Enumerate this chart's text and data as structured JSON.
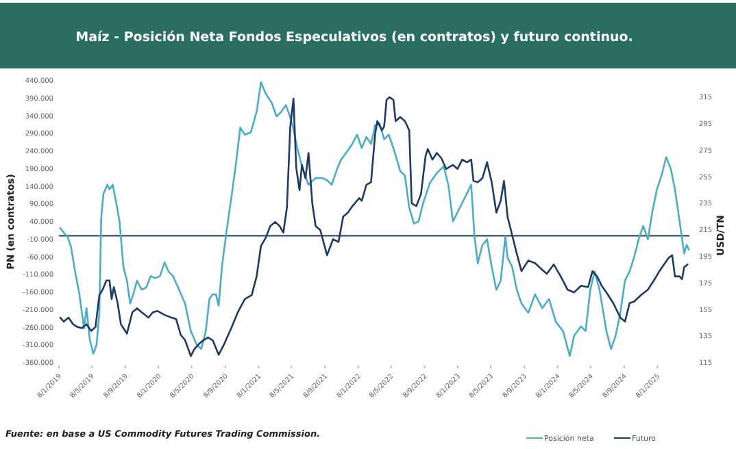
{
  "chart_data": {
    "type": "line",
    "title": "Maíz - Posición Neta Fondos Especulativos (en contratos) y futuro continuo.",
    "ylabel": "PN (en contratos)",
    "y2label": "USD/TN",
    "annotations": [
      "Fuente: en base a US Commodity  Futures Trading Commission."
    ],
    "legend": "bottom right",
    "xlim": [
      "2019-01-08",
      "2025-05-05"
    ],
    "xticks": [
      {
        "value": "2019-01-08",
        "label": "8/1/2019"
      },
      {
        "value": "2019-05-08",
        "label": "8/5/2019"
      },
      {
        "value": "2019-09-08",
        "label": "8/9/2019"
      },
      {
        "value": "2020-01-08",
        "label": "8/1/2020"
      },
      {
        "value": "2020-05-08",
        "label": "8/5/2020"
      },
      {
        "value": "2020-09-08",
        "label": "8/9/2020"
      },
      {
        "value": "2021-01-08",
        "label": "8/1/2021"
      },
      {
        "value": "2021-05-08",
        "label": "8/5/2021"
      },
      {
        "value": "2021-09-08",
        "label": "8/9/2021"
      },
      {
        "value": "2022-01-08",
        "label": "8/1/2022"
      },
      {
        "value": "2022-05-08",
        "label": "8/5/2022"
      },
      {
        "value": "2022-09-08",
        "label": "8/9/2022"
      },
      {
        "value": "2023-01-08",
        "label": "8/1/2023"
      },
      {
        "value": "2023-05-08",
        "label": "8/5/2023"
      },
      {
        "value": "2023-09-08",
        "label": "8/9/2023"
      },
      {
        "value": "2024-01-08",
        "label": "8/1/2024"
      },
      {
        "value": "2024-05-08",
        "label": "8/5/2024"
      },
      {
        "value": "2024-09-08",
        "label": "8/9/2024"
      },
      {
        "value": "2025-01-08",
        "label": "8/1/2025"
      }
    ],
    "ylim": [
      -360000,
      440000
    ],
    "yticks": [
      {
        "value": 440000,
        "label": "440.000"
      },
      {
        "value": 390000,
        "label": "390.000"
      },
      {
        "value": 340000,
        "label": "340.000"
      },
      {
        "value": 290000,
        "label": "290.000"
      },
      {
        "value": 240000,
        "label": "240.000"
      },
      {
        "value": 190000,
        "label": "190.000"
      },
      {
        "value": 140000,
        "label": "140.000"
      },
      {
        "value": 90000,
        "label": "90.000"
      },
      {
        "value": 40000,
        "label": "40.000"
      },
      {
        "value": -10000,
        "label": "-10.000"
      },
      {
        "value": -60000,
        "label": "-60.000"
      },
      {
        "value": -110000,
        "label": "-110.000"
      },
      {
        "value": -160000,
        "label": "-160.000"
      },
      {
        "value": -210000,
        "label": "-210.000"
      },
      {
        "value": -260000,
        "label": "-260.000"
      },
      {
        "value": -310000,
        "label": "-310.000"
      },
      {
        "value": -360000,
        "label": "-360.000"
      }
    ],
    "y2lim": [
      115,
      315
    ],
    "y2ticks": [
      115,
      135,
      155,
      175,
      195,
      215,
      235,
      255,
      275,
      295,
      315
    ],
    "ref_lines": [
      {
        "axis": "y",
        "value": 0,
        "color": "#1f3864"
      }
    ],
    "series": [
      {
        "name": "Posición neta",
        "color": "#4bacc6",
        "x": [
          "2019-01-13",
          "2019-01-26",
          "2019-02-09",
          "2019-02-21",
          "2019-03-08",
          "2019-03-24",
          "2019-04-02",
          "2019-04-10",
          "2019-04-19",
          "2019-05-01",
          "2019-05-14",
          "2019-05-26",
          "2019-06-05",
          "2019-06-12",
          "2019-06-20",
          "2019-07-04",
          "2019-07-12",
          "2019-07-24",
          "2019-08-06",
          "2019-08-18",
          "2019-09-01",
          "2019-09-14",
          "2019-09-26",
          "2019-10-07",
          "2019-10-21",
          "2019-11-07",
          "2019-11-24",
          "2019-12-10",
          "2019-12-27",
          "2020-01-13",
          "2020-01-30",
          "2020-02-13",
          "2020-03-01",
          "2020-03-23",
          "2020-04-14",
          "2020-05-05",
          "2020-05-26",
          "2020-06-12",
          "2020-06-29",
          "2020-07-12",
          "2020-07-24",
          "2020-08-05",
          "2020-08-15",
          "2020-08-27",
          "2020-09-13",
          "2020-09-30",
          "2020-10-16",
          "2020-11-02",
          "2020-11-19",
          "2020-12-11",
          "2021-01-01",
          "2021-01-17",
          "2021-02-03",
          "2021-02-25",
          "2021-03-15",
          "2021-04-01",
          "2021-04-18",
          "2021-04-30",
          "2021-05-13",
          "2021-05-30",
          "2021-06-16",
          "2021-07-10",
          "2021-08-05",
          "2021-08-30",
          "2021-09-16",
          "2021-10-03",
          "2021-10-20",
          "2021-11-06",
          "2021-12-01",
          "2021-12-18",
          "2022-01-04",
          "2022-01-21",
          "2022-02-07",
          "2022-02-24",
          "2022-03-11",
          "2022-03-27",
          "2022-04-13",
          "2022-04-30",
          "2022-05-17",
          "2022-06-11",
          "2022-06-28",
          "2022-07-14",
          "2022-07-31",
          "2022-08-17",
          "2022-09-03",
          "2022-09-28",
          "2022-10-23",
          "2022-11-17",
          "2022-12-04",
          "2022-12-21",
          "2023-01-07",
          "2023-02-01",
          "2023-02-26",
          "2023-03-10",
          "2023-03-22",
          "2023-04-08",
          "2023-04-25",
          "2023-05-12",
          "2023-05-29",
          "2023-06-14",
          "2023-07-01",
          "2023-07-09",
          "2023-07-26",
          "2023-08-12",
          "2023-08-29",
          "2023-09-23",
          "2023-10-18",
          "2023-11-13",
          "2023-12-08",
          "2024-01-02",
          "2024-01-28",
          "2024-02-22",
          "2024-03-09",
          "2024-04-03",
          "2024-04-20",
          "2024-05-07",
          "2024-05-23",
          "2024-06-10",
          "2024-07-05",
          "2024-07-22",
          "2024-08-08",
          "2024-08-25",
          "2024-09-11",
          "2024-09-28",
          "2024-10-14",
          "2024-10-31",
          "2024-11-17",
          "2024-12-04",
          "2024-12-20",
          "2025-01-06",
          "2025-01-23",
          "2025-02-09",
          "2025-02-26",
          "2025-03-13",
          "2025-03-30",
          "2025-04-16",
          "2025-04-25",
          "2025-05-03"
        ],
        "values": [
          22000,
          9000,
          -4000,
          -30000,
          -101000,
          -166000,
          -218000,
          -263000,
          -205000,
          -295000,
          -334000,
          -308000,
          -218000,
          54000,
          119000,
          145000,
          132000,
          145000,
          93000,
          41000,
          -88000,
          -127000,
          -192000,
          -166000,
          -127000,
          -153000,
          -146000,
          -114000,
          -120000,
          -114000,
          -75000,
          -101000,
          -114000,
          -153000,
          -192000,
          -270000,
          -308000,
          -321000,
          -270000,
          -179000,
          -166000,
          -166000,
          -198000,
          -88000,
          15000,
          106000,
          197000,
          307000,
          287000,
          294000,
          352000,
          436000,
          404000,
          378000,
          339000,
          352000,
          371000,
          346000,
          313000,
          249000,
          197000,
          145000,
          164000,
          164000,
          158000,
          145000,
          184000,
          216000,
          242000,
          262000,
          287000,
          249000,
          281000,
          261000,
          313000,
          320000,
          274000,
          287000,
          249000,
          184000,
          171000,
          80000,
          35000,
          41000,
          93000,
          151000,
          178000,
          197000,
          145000,
          41000,
          67000,
          106000,
          145000,
          -2000,
          -78000,
          -26000,
          -10000,
          -88000,
          -153000,
          -127000,
          -2000,
          -62000,
          -88000,
          -153000,
          -192000,
          -218000,
          -166000,
          -205000,
          -179000,
          -244000,
          -270000,
          -341000,
          -283000,
          -257000,
          -270000,
          -153000,
          -101000,
          -153000,
          -270000,
          -321000,
          -283000,
          -218000,
          -127000,
          -101000,
          -62000,
          -10000,
          28000,
          -10000,
          67000,
          132000,
          171000,
          223000,
          190000,
          132000,
          41000,
          -50000,
          -26000,
          -39000
        ]
      },
      {
        "name": "Futuro",
        "color": "#1f3864",
        "axis": "y2",
        "x": [
          "2019-01-13",
          "2019-01-26",
          "2019-02-12",
          "2019-03-01",
          "2019-03-16",
          "2019-04-02",
          "2019-04-19",
          "2019-05-06",
          "2019-05-22",
          "2019-06-05",
          "2019-06-17",
          "2019-07-01",
          "2019-07-12",
          "2019-07-20",
          "2019-07-28",
          "2019-08-11",
          "2019-08-23",
          "2019-09-14",
          "2019-10-04",
          "2019-10-21",
          "2019-11-07",
          "2019-12-02",
          "2019-12-18",
          "2020-01-04",
          "2020-01-30",
          "2020-02-24",
          "2020-03-12",
          "2020-03-29",
          "2020-04-14",
          "2020-05-05",
          "2020-05-17",
          "2020-06-03",
          "2020-06-20",
          "2020-07-07",
          "2020-07-24",
          "2020-08-15",
          "2020-09-04",
          "2020-09-30",
          "2020-10-24",
          "2020-11-19",
          "2020-12-14",
          "2021-01-01",
          "2021-01-17",
          "2021-02-03",
          "2021-02-20",
          "2021-03-10",
          "2021-03-26",
          "2021-04-09",
          "2021-04-22",
          "2021-05-04",
          "2021-05-16",
          "2021-05-26",
          "2021-06-07",
          "2021-06-16",
          "2021-06-29",
          "2021-07-10",
          "2021-07-24",
          "2021-08-05",
          "2021-08-22",
          "2021-09-16",
          "2021-10-08",
          "2021-10-28",
          "2021-11-14",
          "2021-12-01",
          "2021-12-18",
          "2022-01-12",
          "2022-01-21",
          "2022-02-07",
          "2022-02-24",
          "2022-03-11",
          "2022-03-19",
          "2022-04-05",
          "2022-04-13",
          "2022-04-22",
          "2022-05-03",
          "2022-05-17",
          "2022-05-25",
          "2022-06-11",
          "2022-06-28",
          "2022-07-14",
          "2022-07-23",
          "2022-08-09",
          "2022-08-26",
          "2022-09-12",
          "2022-09-20",
          "2022-10-07",
          "2022-10-23",
          "2022-11-09",
          "2022-11-26",
          "2022-12-21",
          "2023-01-07",
          "2023-01-24",
          "2023-02-10",
          "2023-02-26",
          "2023-03-06",
          "2023-03-22",
          "2023-04-08",
          "2023-04-25",
          "2023-05-12",
          "2023-05-29",
          "2023-06-14",
          "2023-06-26",
          "2023-07-09",
          "2023-07-26",
          "2023-08-12",
          "2023-08-29",
          "2023-09-23",
          "2023-10-18",
          "2023-11-13",
          "2023-11-30",
          "2023-12-25",
          "2024-01-20",
          "2024-02-14",
          "2024-03-09",
          "2024-04-03",
          "2024-04-29",
          "2024-05-15",
          "2024-06-01",
          "2024-06-18",
          "2024-07-05",
          "2024-07-30",
          "2024-08-25",
          "2024-09-11",
          "2024-09-28",
          "2024-10-14",
          "2024-11-09",
          "2024-12-04",
          "2024-12-29",
          "2025-01-15",
          "2025-02-01",
          "2025-02-18",
          "2025-03-03",
          "2025-03-13",
          "2025-03-30",
          "2025-04-08",
          "2025-04-16",
          "2025-04-28"
        ],
        "values": [
          149,
          146,
          149,
          144,
          142,
          141,
          144,
          139,
          142,
          166,
          170,
          177,
          177,
          163,
          172,
          160,
          144,
          137,
          153,
          156,
          153,
          149,
          153,
          154,
          151,
          149,
          148,
          136,
          132,
          120,
          125,
          129,
          132,
          134,
          132,
          121,
          129,
          141,
          153,
          163,
          166,
          180,
          203,
          209,
          218,
          221,
          218,
          213,
          232,
          292,
          314,
          262,
          245,
          264,
          254,
          273,
          235,
          218,
          215,
          196,
          208,
          206,
          225,
          228,
          233,
          239,
          237,
          249,
          251,
          287,
          297,
          290,
          293,
          313,
          315,
          313,
          297,
          300,
          297,
          290,
          235,
          233,
          242,
          271,
          276,
          268,
          273,
          269,
          261,
          264,
          261,
          268,
          266,
          268,
          252,
          251,
          254,
          266,
          251,
          228,
          237,
          252,
          225,
          211,
          197,
          184,
          192,
          190,
          185,
          182,
          189,
          180,
          170,
          168,
          173,
          172,
          184,
          180,
          173,
          168,
          160,
          149,
          146,
          160,
          161,
          166,
          170,
          178,
          184,
          189,
          194,
          196,
          180,
          180,
          178,
          187,
          189
        ]
      }
    ]
  }
}
